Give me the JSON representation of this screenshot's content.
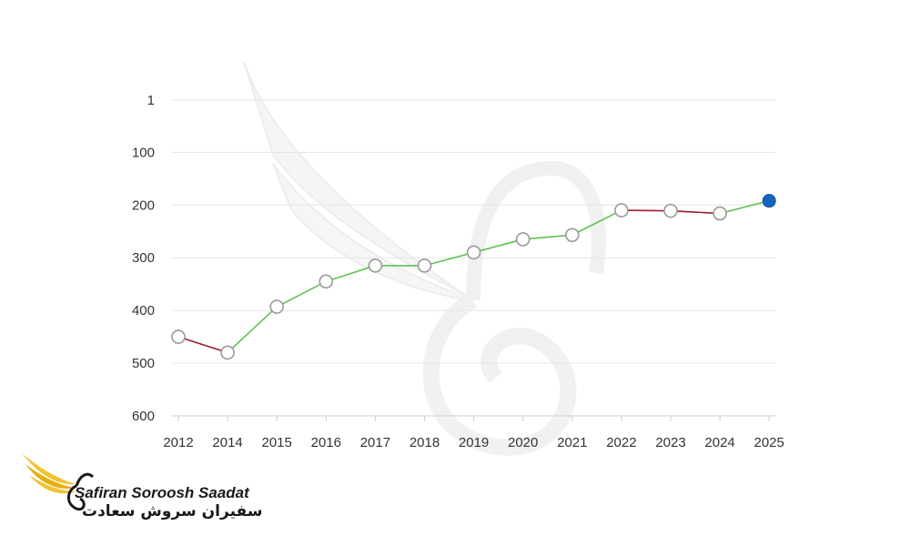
{
  "chart_data": {
    "type": "line",
    "title": "",
    "xlabel": "",
    "ylabel": "",
    "x": [
      "2012",
      "2014",
      "2015",
      "2016",
      "2017",
      "2018",
      "2019",
      "2020",
      "2021",
      "2022",
      "2023",
      "2024",
      "2025"
    ],
    "y": [
      450,
      480,
      393,
      345,
      315,
      315,
      290,
      265,
      257,
      210,
      211,
      216,
      192
    ],
    "y_ticks": [
      "1",
      "100",
      "200",
      "300",
      "400",
      "500",
      "600"
    ],
    "ylim": [
      1,
      600
    ],
    "y_inverted": true,
    "grid": true,
    "colors": {
      "increase": "#5cc44e",
      "decrease": "#9b1c2e",
      "marker_fill": "#ffffff",
      "marker_stroke": "#9a9a9a",
      "last_marker": "#1565c0",
      "grid": "#e6e6e6"
    }
  },
  "brand": {
    "name_en": "Safiran Soroosh Saadat",
    "name_fa": "سفیران سروش سعادت",
    "accent": "#f2c230"
  }
}
